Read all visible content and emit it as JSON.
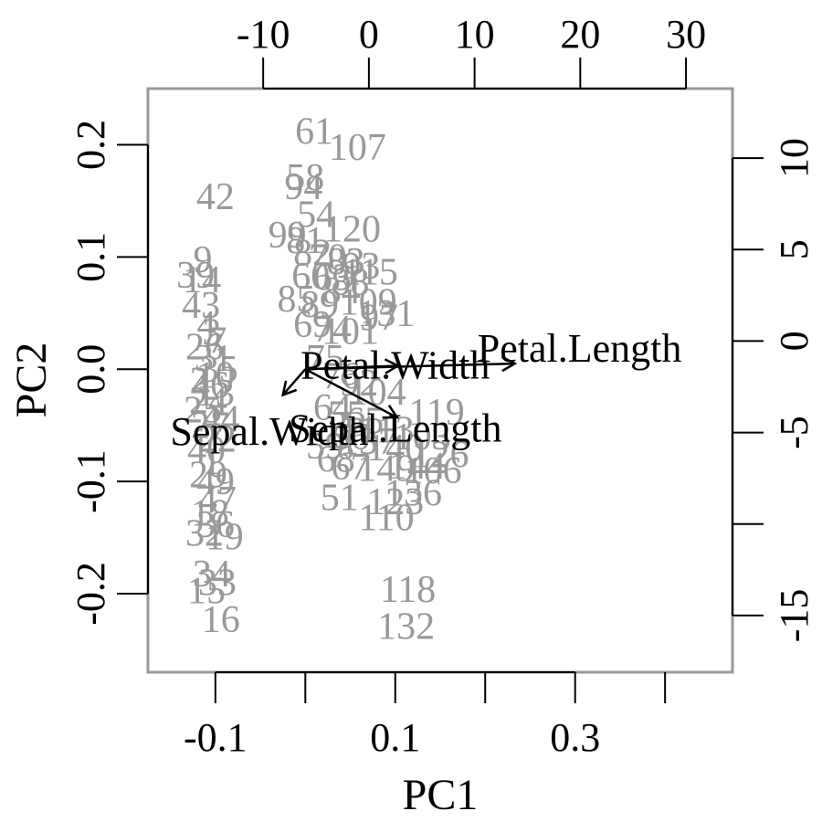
{
  "chart_data": {
    "type": "scatter",
    "subtype": "biplot",
    "title": "",
    "xlabel": "PC1",
    "ylabel": "PC2",
    "xlim": [
      -0.175,
      0.475
    ],
    "ylim": [
      -0.27,
      0.25
    ],
    "xticks": [
      -0.1,
      0.1,
      0.3
    ],
    "xtick_labels": [
      "-0.1",
      "0.1",
      "0.3"
    ],
    "yticks": [
      -0.2,
      -0.1,
      0.0,
      0.1,
      0.2
    ],
    "ytick_labels": [
      "-0.2",
      "-0.1",
      "0.0",
      "0.1",
      "0.2"
    ],
    "top_axis": {
      "lim": [
        -20.9,
        34.4
      ],
      "ticks": [
        -10,
        0,
        10,
        20,
        30
      ],
      "tick_labels": [
        "-10",
        "0",
        "10",
        "20",
        "30"
      ]
    },
    "right_axis": {
      "lim": [
        -18.1,
        13.8
      ],
      "ticks": [
        -15,
        -10,
        -5,
        0,
        5,
        10
      ],
      "tick_labels": [
        "-15",
        "",
        "-5",
        "0",
        "5",
        "10"
      ]
    },
    "point_color": "#999999",
    "arrow_color": "#000000",
    "box_color": "#999999",
    "points": [
      {
        "label": "61",
        "x": 0.01,
        "y": 0.212
      },
      {
        "label": "107",
        "x": 0.058,
        "y": 0.198
      },
      {
        "label": "58",
        "x": 0.0,
        "y": 0.171
      },
      {
        "label": "94",
        "x": -0.002,
        "y": 0.163
      },
      {
        "label": "42",
        "x": -0.1,
        "y": 0.154
      },
      {
        "label": "54",
        "x": 0.012,
        "y": 0.138
      },
      {
        "label": "99",
        "x": -0.02,
        "y": 0.12
      },
      {
        "label": "81",
        "x": 0.0,
        "y": 0.115
      },
      {
        "label": "120",
        "x": 0.052,
        "y": 0.125
      },
      {
        "label": "9",
        "x": -0.114,
        "y": 0.098
      },
      {
        "label": "39",
        "x": -0.122,
        "y": 0.084
      },
      {
        "label": "14",
        "x": -0.115,
        "y": 0.08
      },
      {
        "label": "43",
        "x": -0.116,
        "y": 0.057
      },
      {
        "label": "82",
        "x": 0.008,
        "y": 0.104
      },
      {
        "label": "70",
        "x": 0.025,
        "y": 0.1
      },
      {
        "label": "83",
        "x": 0.045,
        "y": 0.096
      },
      {
        "label": "93",
        "x": 0.062,
        "y": 0.092
      },
      {
        "label": "115",
        "x": 0.072,
        "y": 0.087
      },
      {
        "label": "60",
        "x": 0.006,
        "y": 0.083
      },
      {
        "label": "63",
        "x": 0.03,
        "y": 0.082
      },
      {
        "label": "88",
        "x": 0.05,
        "y": 0.078
      },
      {
        "label": "84",
        "x": 0.04,
        "y": 0.07
      },
      {
        "label": "85",
        "x": -0.01,
        "y": 0.063
      },
      {
        "label": "89",
        "x": 0.016,
        "y": 0.058
      },
      {
        "label": "109",
        "x": 0.07,
        "y": 0.06
      },
      {
        "label": "131",
        "x": 0.09,
        "y": 0.05
      },
      {
        "label": "69",
        "x": 0.008,
        "y": 0.04
      },
      {
        "label": "74",
        "x": 0.03,
        "y": 0.036
      },
      {
        "label": "101",
        "x": 0.05,
        "y": 0.034
      },
      {
        "label": "97",
        "x": 0.082,
        "y": 0.046
      },
      {
        "label": "4",
        "x": -0.11,
        "y": 0.04
      },
      {
        "label": "3",
        "x": -0.104,
        "y": 0.033
      },
      {
        "label": "7",
        "x": -0.098,
        "y": 0.026
      },
      {
        "label": "26",
        "x": -0.112,
        "y": 0.02
      },
      {
        "label": "31",
        "x": -0.102,
        "y": 0.01
      },
      {
        "label": "35",
        "x": -0.096,
        "y": 0.0
      },
      {
        "label": "10",
        "x": -0.1,
        "y": -0.005
      },
      {
        "label": "2",
        "x": -0.118,
        "y": -0.01
      },
      {
        "label": "46",
        "x": -0.106,
        "y": -0.014
      },
      {
        "label": "13",
        "x": -0.1,
        "y": -0.021
      },
      {
        "label": "24",
        "x": -0.108,
        "y": -0.028
      },
      {
        "label": "25",
        "x": -0.114,
        "y": -0.036
      },
      {
        "label": "44",
        "x": -0.094,
        "y": -0.044
      },
      {
        "label": "27",
        "x": -0.106,
        "y": -0.05
      },
      {
        "label": "22",
        "x": -0.098,
        "y": -0.062
      },
      {
        "label": "40",
        "x": -0.11,
        "y": -0.072
      },
      {
        "label": "1",
        "x": -0.104,
        "y": -0.082
      },
      {
        "label": "29",
        "x": -0.108,
        "y": -0.094
      },
      {
        "label": "49",
        "x": -0.1,
        "y": -0.1
      },
      {
        "label": "47",
        "x": -0.098,
        "y": -0.116
      },
      {
        "label": "18",
        "x": -0.106,
        "y": -0.128
      },
      {
        "label": "36",
        "x": -0.1,
        "y": -0.138
      },
      {
        "label": "32",
        "x": -0.112,
        "y": -0.146
      },
      {
        "label": "19",
        "x": -0.09,
        "y": -0.149
      },
      {
        "label": "34",
        "x": -0.104,
        "y": -0.182
      },
      {
        "label": "33",
        "x": -0.098,
        "y": -0.19
      },
      {
        "label": "15",
        "x": -0.11,
        "y": -0.197
      },
      {
        "label": "16",
        "x": -0.094,
        "y": -0.223
      },
      {
        "label": "75",
        "x": 0.022,
        "y": 0.01
      },
      {
        "label": "76",
        "x": 0.04,
        "y": -0.006
      },
      {
        "label": "92",
        "x": 0.06,
        "y": -0.012
      },
      {
        "label": "104",
        "x": 0.08,
        "y": -0.02
      },
      {
        "label": "64",
        "x": 0.03,
        "y": -0.034
      },
      {
        "label": "55",
        "x": 0.046,
        "y": -0.04
      },
      {
        "label": "65",
        "x": 0.066,
        "y": -0.046
      },
      {
        "label": "113",
        "x": 0.09,
        "y": -0.054
      },
      {
        "label": "66",
        "x": 0.05,
        "y": -0.06
      },
      {
        "label": "59",
        "x": 0.022,
        "y": -0.068
      },
      {
        "label": "137",
        "x": 0.07,
        "y": -0.064
      },
      {
        "label": "140",
        "x": 0.1,
        "y": -0.07
      },
      {
        "label": "119",
        "x": 0.146,
        "y": -0.038
      },
      {
        "label": "103",
        "x": 0.13,
        "y": -0.06
      },
      {
        "label": "126",
        "x": 0.15,
        "y": -0.076
      },
      {
        "label": "144",
        "x": 0.124,
        "y": -0.086
      },
      {
        "label": "68",
        "x": 0.034,
        "y": -0.08
      },
      {
        "label": "67",
        "x": 0.05,
        "y": -0.087
      },
      {
        "label": "149",
        "x": 0.09,
        "y": -0.088
      },
      {
        "label": "106",
        "x": 0.142,
        "y": -0.09
      },
      {
        "label": "136",
        "x": 0.12,
        "y": -0.11
      },
      {
        "label": "51",
        "x": 0.038,
        "y": -0.114
      },
      {
        "label": "123",
        "x": 0.1,
        "y": -0.118
      },
      {
        "label": "110",
        "x": 0.09,
        "y": -0.132
      },
      {
        "label": "118",
        "x": 0.114,
        "y": -0.196
      },
      {
        "label": "132",
        "x": 0.112,
        "y": -0.229
      }
    ],
    "variables": [
      {
        "label": "Petal.Length",
        "x": 0.233,
        "y": 0.005,
        "label_x": 0.305,
        "label_y": 0.018
      },
      {
        "label": "Petal.Width",
        "x": 0.103,
        "y": 0.003,
        "label_x": 0.1,
        "label_y": 0.003
      },
      {
        "label": "Sepal.Length",
        "x": 0.102,
        "y": -0.043,
        "label_x": 0.1,
        "label_y": -0.053
      },
      {
        "label": "Sepal.Width",
        "x": -0.025,
        "y": -0.023,
        "label_x": -0.04,
        "label_y": -0.056
      }
    ]
  }
}
